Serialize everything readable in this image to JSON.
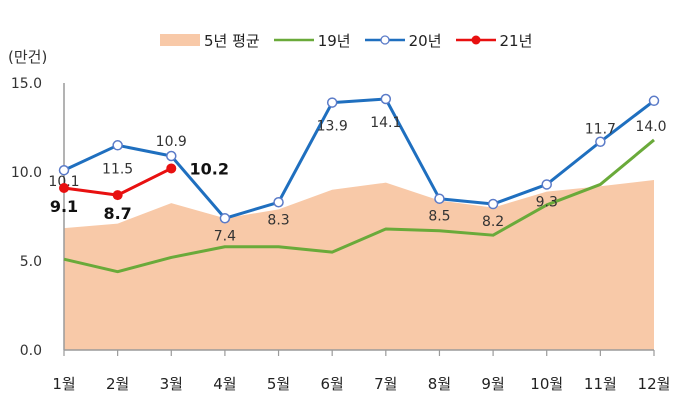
{
  "chart_data": {
    "type": "line",
    "title": "",
    "ylabel": "(만건)",
    "xlabel": "",
    "ylim": [
      0,
      15
    ],
    "yticks": [
      "0.0",
      "5.0",
      "10.0",
      "15.0"
    ],
    "categories": [
      "1월",
      "2월",
      "3월",
      "4월",
      "5월",
      "6월",
      "7월",
      "8월",
      "9월",
      "10월",
      "11월",
      "12월"
    ],
    "grid": false,
    "legend_position": "top",
    "series": [
      {
        "name": "5년 평균",
        "kind": "area",
        "color": "#F8C9A8",
        "values": [
          6.85,
          7.1,
          8.25,
          7.4,
          7.9,
          9.0,
          9.4,
          8.4,
          8.0,
          8.9,
          9.2,
          9.55
        ]
      },
      {
        "name": "19년",
        "kind": "line",
        "color": "#6AAA3A",
        "values": [
          5.1,
          4.4,
          5.2,
          5.8,
          5.8,
          5.5,
          6.8,
          6.7,
          6.45,
          8.15,
          9.3,
          11.8
        ]
      },
      {
        "name": "20년",
        "kind": "line-open-marker",
        "color": "#1F6FBF",
        "values": [
          10.1,
          11.5,
          10.9,
          7.4,
          8.3,
          13.9,
          14.1,
          8.5,
          8.2,
          9.3,
          11.7,
          14.0
        ],
        "labels": [
          "10.1",
          "11.5",
          "10.9",
          "7.4",
          "8.3",
          "13.9",
          "14.1",
          "8.5",
          "8.2",
          "9.3",
          "11.7",
          "14.0"
        ]
      },
      {
        "name": "21년",
        "kind": "line-filled-marker",
        "color": "#E81010",
        "values": [
          9.1,
          8.7,
          10.2
        ],
        "labels": [
          "9.1",
          "8.7",
          "10.2"
        ]
      }
    ]
  },
  "legend": {
    "avg": "5년 평균",
    "y19": "19년",
    "y20": "20년",
    "y21": "21년"
  },
  "axis": {
    "unit": "(만건)"
  }
}
